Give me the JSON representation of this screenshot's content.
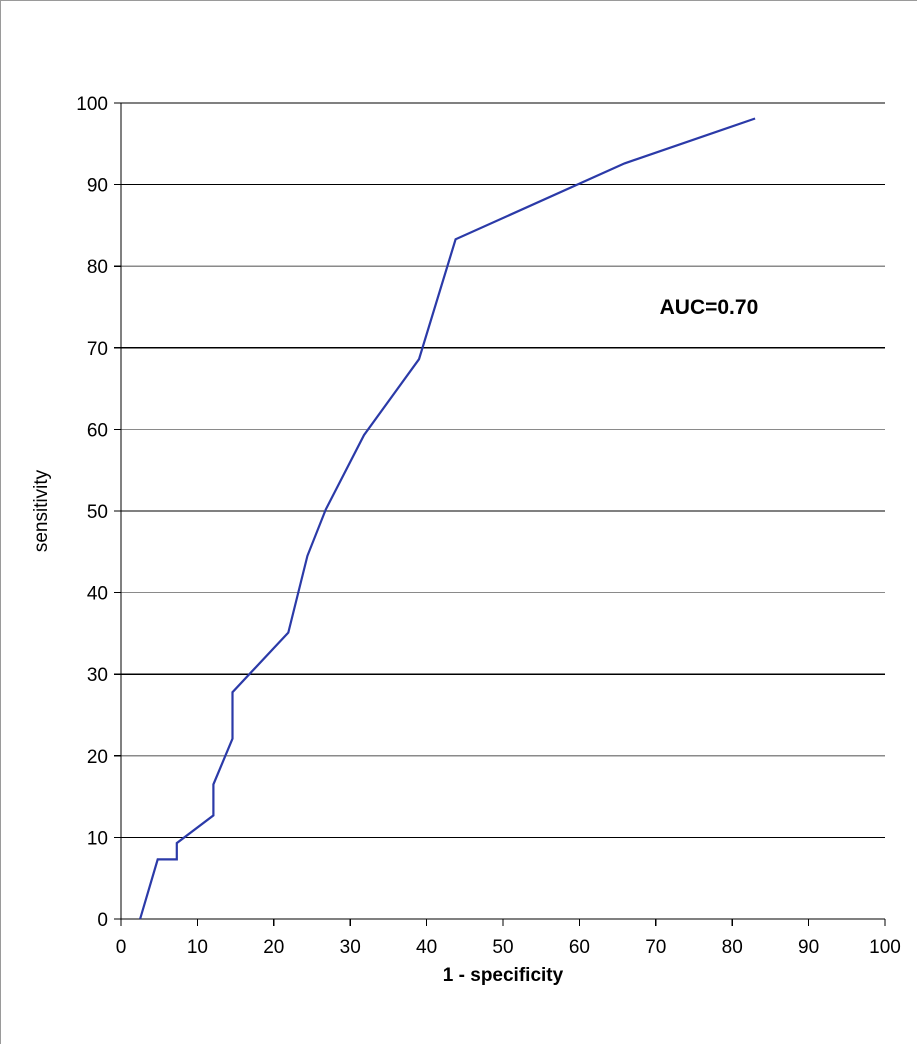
{
  "chart_data": {
    "type": "line",
    "title": "",
    "xlabel": "1 - specificity",
    "ylabel": "sensitivity",
    "xlim": [
      0,
      100
    ],
    "ylim": [
      0,
      100
    ],
    "x_ticks": [
      0,
      10,
      20,
      30,
      40,
      50,
      60,
      70,
      80,
      90,
      100
    ],
    "y_ticks": [
      0,
      10,
      20,
      30,
      40,
      50,
      60,
      70,
      80,
      90,
      100
    ],
    "grid": {
      "horizontal": true,
      "vertical": false
    },
    "legend": "none",
    "series": [
      {
        "color": "#2b3aa8",
        "x": [
          2.5,
          4.8,
          7.3,
          7.3,
          12.1,
          12.1,
          14.6,
          14.6,
          21.9,
          24.4,
          26.8,
          31.8,
          39.0,
          43.8,
          65.9,
          83.0
        ],
        "y": [
          0,
          7.3,
          7.3,
          9.3,
          12.7,
          16.5,
          22.1,
          27.8,
          35.1,
          44.5,
          50.2,
          59.3,
          68.6,
          83.3,
          92.6,
          98.1
        ]
      }
    ],
    "annotations": [
      {
        "text": "AUC=0.70",
        "x": 70.5,
        "y": 75.1
      }
    ]
  }
}
